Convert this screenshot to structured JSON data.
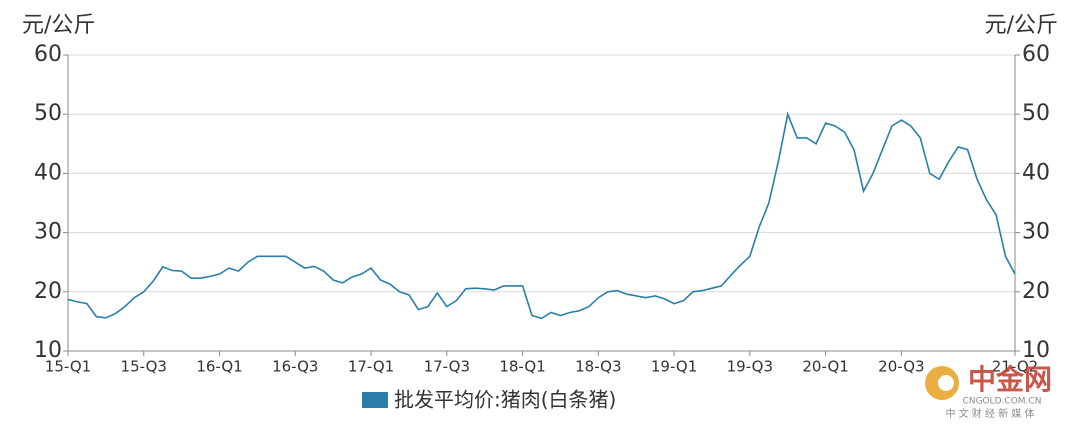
{
  "chart_data": {
    "type": "line",
    "y_title": "元/公斤",
    "y2_title": "元/公斤",
    "categories": [
      "15-Q1",
      null,
      null,
      null,
      null,
      null,
      null,
      null,
      "15-Q3",
      null,
      null,
      null,
      null,
      null,
      null,
      null,
      "16-Q1",
      null,
      null,
      null,
      null,
      null,
      null,
      null,
      "16-Q3",
      null,
      null,
      null,
      null,
      null,
      null,
      null,
      "17-Q1",
      null,
      null,
      null,
      null,
      null,
      null,
      null,
      "17-Q3",
      null,
      null,
      null,
      null,
      null,
      null,
      null,
      "18-Q1",
      null,
      null,
      null,
      null,
      null,
      null,
      null,
      "18-Q3",
      null,
      null,
      null,
      null,
      null,
      null,
      null,
      "19-Q1",
      null,
      null,
      null,
      null,
      null,
      null,
      null,
      "19-Q3",
      null,
      null,
      null,
      null,
      null,
      null,
      null,
      "20-Q1",
      null,
      null,
      null,
      null,
      null,
      null,
      null,
      "20-Q3",
      null,
      null,
      null,
      null,
      null,
      null,
      null,
      null,
      null,
      null,
      null,
      "21-Q2"
    ],
    "series": [
      {
        "name": "批发平均价:猪肉(白条猪)",
        "color": "#2a7fa8",
        "values": [
          18.7,
          18.3,
          18.0,
          15.8,
          15.6,
          16.3,
          17.5,
          19.0,
          20.0,
          21.8,
          24.2,
          23.6,
          23.5,
          22.3,
          22.3,
          22.6,
          23.0,
          24.0,
          23.5,
          25.0,
          26.0,
          26.0,
          26.0,
          26.0,
          25.0,
          24.0,
          24.3,
          23.5,
          22.0,
          21.5,
          22.5,
          23.0,
          24.0,
          22.0,
          21.3,
          20.0,
          19.5,
          17.0,
          17.5,
          19.8,
          17.5,
          18.5,
          20.5,
          20.6,
          20.5,
          20.3,
          21.0,
          21.0,
          21.0,
          16.0,
          15.5,
          16.5,
          16.0,
          16.5,
          16.8,
          17.5,
          19.0,
          20.0,
          20.2,
          19.6,
          19.3,
          19.0,
          19.3,
          18.8,
          18.0,
          18.5,
          20.0,
          20.2,
          20.6,
          21.0,
          22.8,
          24.5,
          26.0,
          31.0,
          35.0,
          42.0,
          50.0,
          46.0,
          46.0,
          45.0,
          48.5,
          48.0,
          47.0,
          44.0,
          37.0,
          40.0,
          44.0,
          48.0,
          49.0,
          48.0,
          46.0,
          40.0,
          39.0,
          42.0,
          44.5,
          44.0,
          39.0,
          35.5,
          33.0,
          26.0,
          23.0
        ]
      }
    ],
    "ylim": [
      10,
      60
    ],
    "yticks": [
      10,
      20,
      30,
      40,
      50,
      60
    ],
    "y2lim": [
      10,
      60
    ],
    "y2ticks": [
      10,
      20,
      30,
      40,
      50,
      60
    ],
    "grid": true
  },
  "watermark": {
    "name": "中金网",
    "site": "CNGOLD.COM.CN",
    "slogan": "中 文 财 经 新 媒 体"
  }
}
